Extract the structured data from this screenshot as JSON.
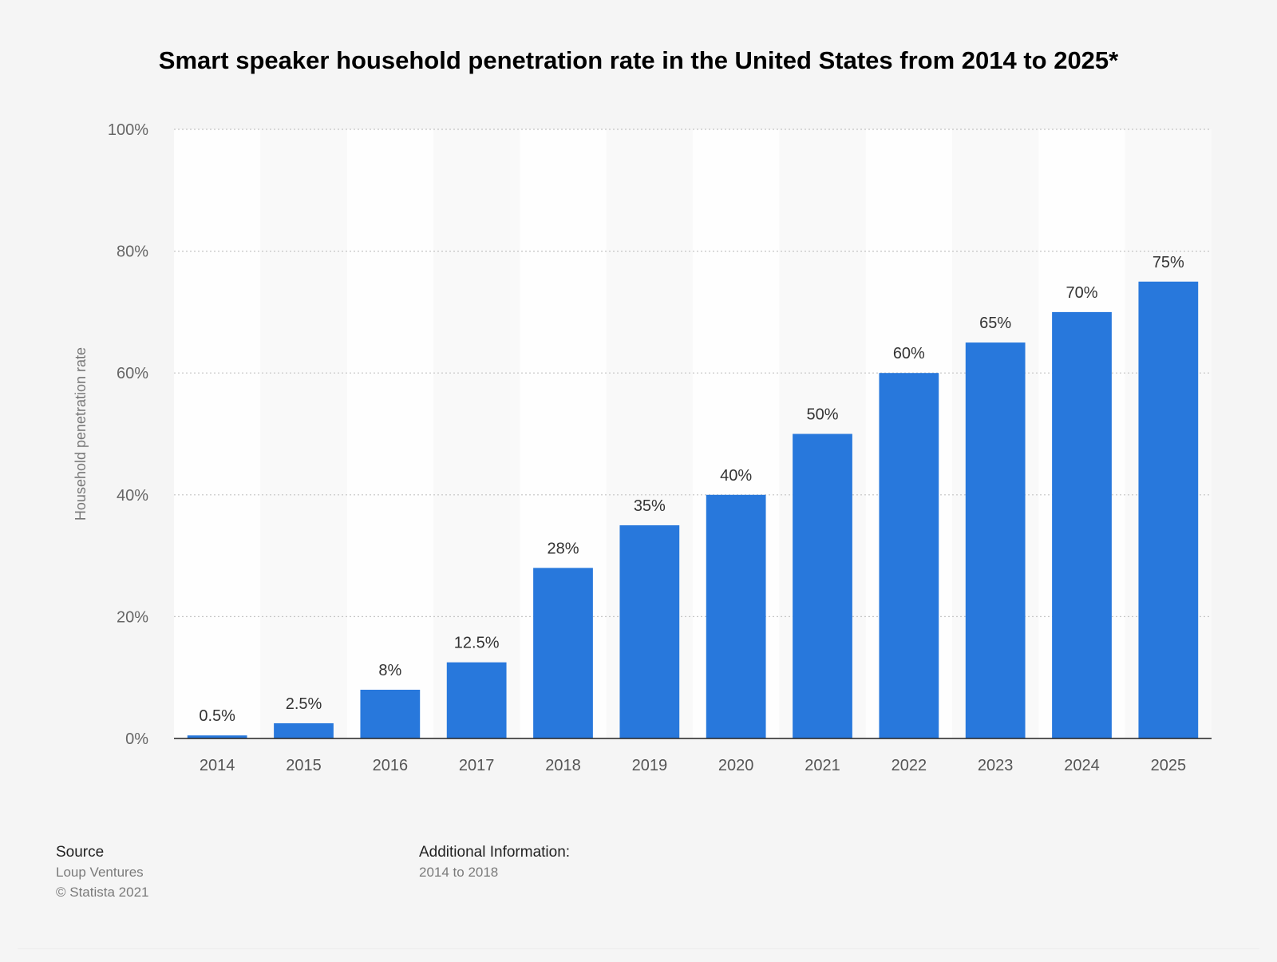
{
  "chart_data": {
    "type": "bar",
    "title": "Smart speaker household penetration rate in the United States from 2014 to 2025*",
    "categories": [
      "2014",
      "2015",
      "2016",
      "2017",
      "2018",
      "2019",
      "2020",
      "2021",
      "2022",
      "2023",
      "2024",
      "2025"
    ],
    "values": [
      0.5,
      2.5,
      8,
      12.5,
      28,
      35,
      40,
      50,
      60,
      65,
      70,
      75
    ],
    "data_labels": [
      "0.5%",
      "2.5%",
      "8%",
      "12.5%",
      "28%",
      "35%",
      "40%",
      "50%",
      "60%",
      "65%",
      "70%",
      "75%"
    ],
    "ylabel": "Household penetration rate",
    "xlabel": "",
    "ylim": [
      0,
      100
    ],
    "yticks": [
      0,
      20,
      40,
      60,
      80,
      100
    ],
    "ytick_labels": [
      "0%",
      "20%",
      "40%",
      "60%",
      "80%",
      "100%"
    ],
    "grid": true,
    "bar_color": "#2878dc"
  },
  "footer": {
    "source_heading": "Source",
    "source_name": "Loup Ventures",
    "copyright": "© Statista 2021",
    "info_heading": "Additional Information:",
    "info_text": "2014 to 2018"
  }
}
